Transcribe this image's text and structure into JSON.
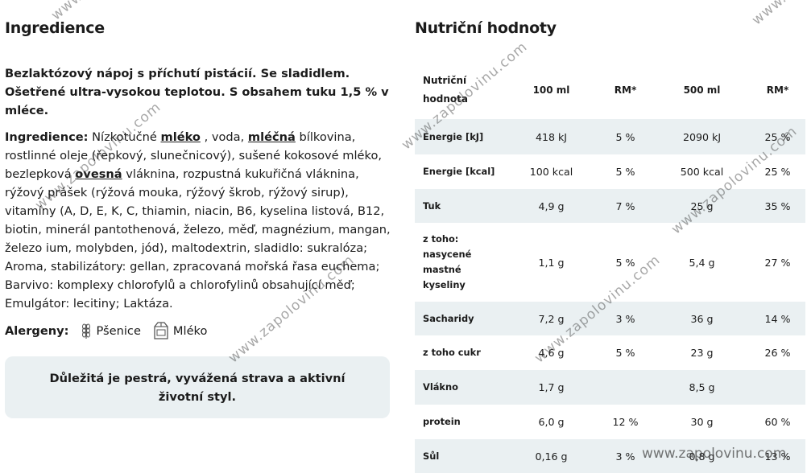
{
  "ingredients_section": {
    "title": "Ingredience",
    "intro_line1": "Bezlaktózový nápoj s příchutí pistácií. Se sladidlem.",
    "intro_line2": "Ošetřené ultra-vysokou teplotou. S obsahem tuku 1,5 % v mléce.",
    "label": "Ingredience:",
    "part1": " Nízkotučné ",
    "u1": "mléko",
    "part2": " , voda, ",
    "u2": "mléčná",
    "part3": " bílkovina, rostlinné oleje (řepkový, slunečnicový), sušené kokosové mléko, bezlepková ",
    "u3": "ovesná",
    "part4": " vláknina, rozpustná kukuřičná vláknina, rýžový prášek (rýžová mouka, rýžový škrob, rýžový sirup), vitamíny (A, D, E, K, C, thiamin, niacin, B6, kyselina listová, B12, biotin, minerál pantothenová, železo, měď, magnézium, mangan, železo ium, molybden, jód), maltodextrin, sladidlo: sukralóza; Aroma, stabilizátory: gellan, zpracovaná mořská řasa euchema; Barvivo: komplexy chlorofylů a chlorofylinů obsahující měď; Emulgátor: lecitiny; Laktáza.",
    "allergens_label": "Alergeny:",
    "allergens": [
      {
        "name": "Pšenice",
        "icon": "wheat-icon"
      },
      {
        "name": "Mléko",
        "icon": "milk-carton-icon"
      }
    ],
    "note": "Důležitá je pestrá, vyvážená strava a aktivní životní styl."
  },
  "nutrition_section": {
    "title": "Nutriční hodnoty",
    "headers": [
      "Nutriční hodnota",
      "100 ml",
      "RM*",
      "500 ml",
      "RM*"
    ],
    "rows": [
      [
        "Energie [kJ]",
        "418 kJ",
        "5 %",
        "2090 kJ",
        "25 %"
      ],
      [
        "Energie [kcal]",
        "100 kcal",
        "5 %",
        "500 kcal",
        "25 %"
      ],
      [
        "Tuk",
        "4,9 g",
        "7 %",
        "25 g",
        "35 %"
      ],
      [
        "z toho: nasycené mastné kyseliny",
        "1,1 g",
        "5 %",
        "5,4 g",
        "27 %"
      ],
      [
        "Sacharidy",
        "7,2 g",
        "3 %",
        "36 g",
        "14 %"
      ],
      [
        "z toho cukr",
        "4,6 g",
        "5 %",
        "23 g",
        "26 %"
      ],
      [
        "Vláknо",
        "1,7 g",
        "",
        "8,5 g",
        ""
      ],
      [
        "protein",
        "6,0 g",
        "12 %",
        "30 g",
        "60 %"
      ],
      [
        "Sůl",
        "0,16 g",
        "3 %",
        "0,8 g",
        "13 %"
      ]
    ]
  },
  "watermark": {
    "text": "www.zapolovinu.com"
  }
}
